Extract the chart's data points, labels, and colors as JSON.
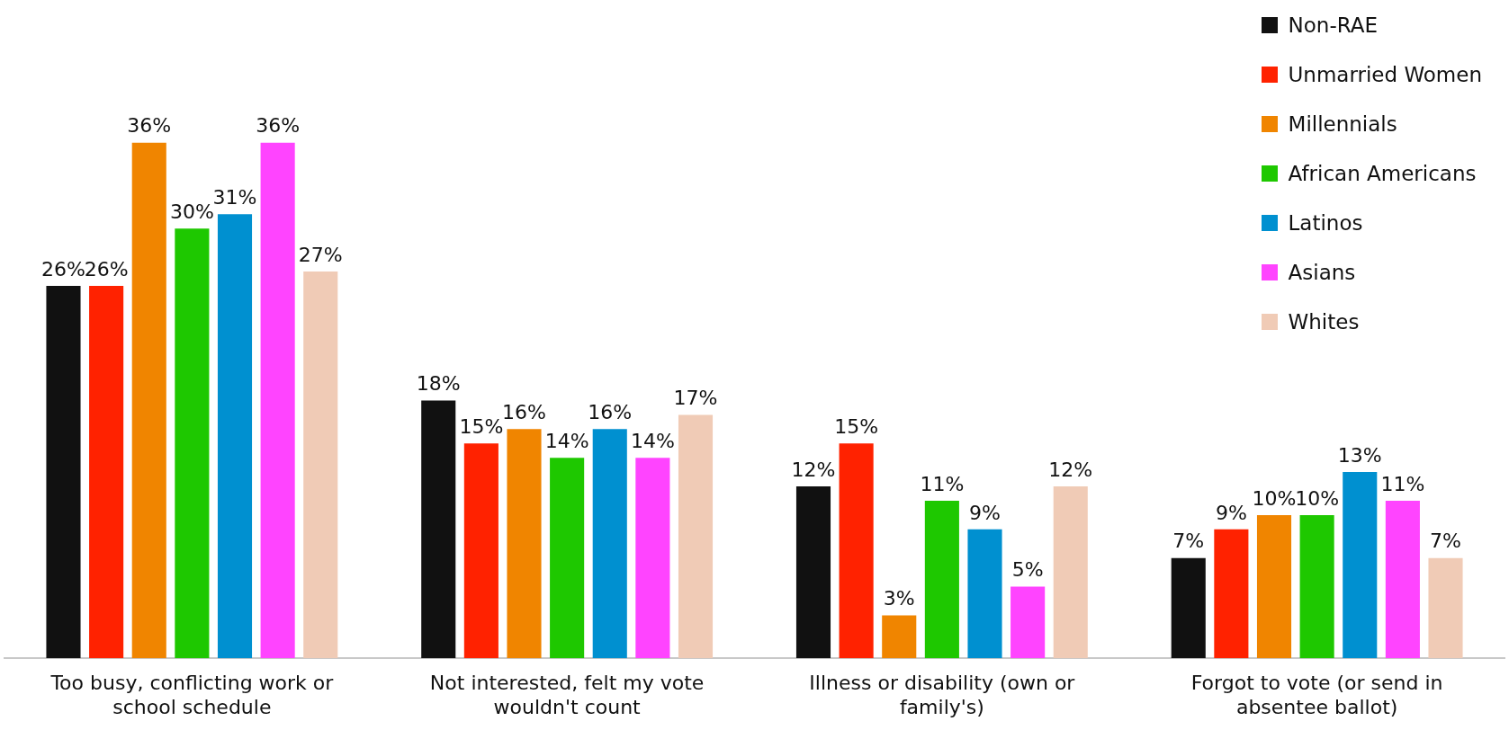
{
  "chart_data": {
    "type": "bar",
    "categories": [
      "Too busy, conflicting work or school schedule",
      "Not interested, felt my vote wouldn't count",
      "Illness or disability (own or family's)",
      "Forgot to vote (or send in absentee ballot)"
    ],
    "series": [
      {
        "name": "Non-RAE",
        "color": "#111111",
        "values": [
          26,
          18,
          12,
          7
        ],
        "value_labels": [
          "26%",
          "18%",
          "12%",
          "7%"
        ]
      },
      {
        "name": "Unmarried Women",
        "color": "#ff2200",
        "values": [
          26,
          15,
          15,
          9
        ],
        "value_labels": [
          "26%",
          "15%",
          "15%",
          "9%"
        ]
      },
      {
        "name": "Millennials",
        "color": "#f08500",
        "values": [
          36,
          16,
          3,
          10
        ],
        "value_labels": [
          "36%",
          "16%",
          "3%",
          "10%"
        ]
      },
      {
        "name": "African Americans",
        "color": "#1ec800",
        "values": [
          30,
          14,
          11,
          10
        ],
        "value_labels": [
          "30%",
          "14%",
          "11%",
          "10%"
        ]
      },
      {
        "name": "Latinos",
        "color": "#0090d0",
        "values": [
          31,
          16,
          9,
          13
        ],
        "value_labels": [
          "31%",
          "16%",
          "9%",
          "13%"
        ]
      },
      {
        "name": "Asians",
        "color": "#ff44ff",
        "values": [
          36,
          14,
          5,
          11
        ],
        "value_labels": [
          "36%",
          "14%",
          "5%",
          "11%"
        ]
      },
      {
        "name": "Whites",
        "color": "#f0cbb6",
        "values": [
          27,
          17,
          12,
          7
        ],
        "value_labels": [
          "27%",
          "17%",
          "12%",
          "7%"
        ]
      }
    ],
    "legend": "top right"
  }
}
